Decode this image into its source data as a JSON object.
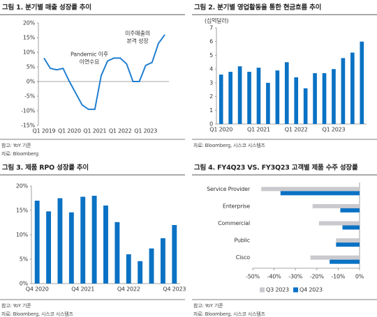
{
  "chart_data": [
    {
      "type": "line",
      "title": "그림 1. 분기별 매출 성장률 추이",
      "categories": [
        "Q1 2019",
        null,
        null,
        null,
        "Q1 2020",
        null,
        null,
        null,
        "Q1 2021",
        null,
        null,
        null,
        "Q1 2022",
        null,
        null,
        null,
        "Q1 2023",
        null,
        null,
        null
      ],
      "values": [
        8,
        4.5,
        4,
        4.5,
        0,
        -4,
        -8,
        -9.5,
        -9.5,
        2,
        7,
        8,
        8,
        6,
        0,
        0,
        5.5,
        6.5,
        13,
        16
      ],
      "color": "#1f7fd0",
      "ylim": [
        -15,
        20
      ],
      "yticks": [
        {
          "value": -15,
          "label": "-15%"
        },
        {
          "value": -10,
          "label": "-10%"
        },
        {
          "value": -5,
          "label": "-5%"
        },
        {
          "value": 0,
          "label": "0%"
        },
        {
          "value": 5,
          "label": "5%"
        },
        {
          "value": 10,
          "label": "10%"
        },
        {
          "value": 15,
          "label": "15%"
        },
        {
          "value": 20,
          "label": "20%"
        }
      ],
      "annotations": [
        "Pandemic 이후",
        "이연수요",
        "미주매출의",
        "본격 성장"
      ],
      "notes": [
        "참고: YoY 기준",
        "자료: Bloomberg"
      ]
    },
    {
      "type": "bar",
      "title": "그림 2. 분기별 영업활동을 통한 현금흐름 추이",
      "unit": "(십억달러)",
      "categories": [
        "Q1 2020",
        null,
        null,
        null,
        "Q1 2021",
        null,
        null,
        null,
        "Q1 2022",
        null,
        null,
        null,
        "Q1 2023",
        null,
        null,
        null
      ],
      "values": [
        3.6,
        3.8,
        4.2,
        3.8,
        4.1,
        3.0,
        3.9,
        4.5,
        3.4,
        2.6,
        3.7,
        3.7,
        4.0,
        4.8,
        5.2,
        6.0
      ],
      "color": "#0a72c4",
      "ylim": [
        0,
        7
      ],
      "yticks": [
        0,
        1,
        2,
        3,
        4,
        5,
        6,
        7
      ],
      "notes": [
        "자료: Bloomberg, 시스코 시스템즈"
      ]
    },
    {
      "type": "bar",
      "title": "그림 3. 제품 RPO 성장률 추이",
      "categories": [
        "Q4 2020",
        null,
        null,
        null,
        "Q4 2021",
        null,
        null,
        null,
        "Q4 2022",
        null,
        null,
        null,
        "Q4 2023"
      ],
      "values": [
        17,
        14.8,
        17.5,
        14.6,
        17.8,
        18,
        16,
        12.6,
        6,
        4.6,
        7.2,
        9.3,
        12
      ],
      "color": "#0a72c4",
      "ylim": [
        0,
        20
      ],
      "yticks": [
        {
          "value": 0,
          "label": "0%"
        },
        {
          "value": 5,
          "label": "5%"
        },
        {
          "value": 10,
          "label": "10%"
        },
        {
          "value": 15,
          "label": "15%"
        },
        {
          "value": 20,
          "label": "20%"
        }
      ],
      "notes": [
        "참고: YoY 기준",
        "자료: Bloomberg, 시스코 시스템즈"
      ]
    },
    {
      "type": "barh",
      "title": "그림 4. FY4Q23 VS. FY3Q23 고객별 제품 수주 성장률",
      "categories": [
        "Service Provider",
        "Enterprise",
        "Commercial",
        "Public",
        "Cisco"
      ],
      "series": [
        {
          "name": "Q3 2023",
          "color": "#c9c9ce",
          "values": [
            -46,
            -22,
            -19,
            -11,
            -23
          ]
        },
        {
          "name": "Q4 2023",
          "color": "#0a72c4",
          "values": [
            -37,
            -9,
            -8,
            -11,
            -14
          ]
        }
      ],
      "xlim": [
        -50,
        0
      ],
      "xticks": [
        {
          "value": -50,
          "label": "-50%"
        },
        {
          "value": -40,
          "label": "-40%"
        },
        {
          "value": -30,
          "label": "-30%"
        },
        {
          "value": -20,
          "label": "-20%"
        },
        {
          "value": -10,
          "label": "-10%"
        },
        {
          "value": 0,
          "label": "0%"
        }
      ],
      "notes": [
        "참고: YoY 기준",
        "자료: Bloomberg, 시스코 시스템즈"
      ]
    }
  ]
}
